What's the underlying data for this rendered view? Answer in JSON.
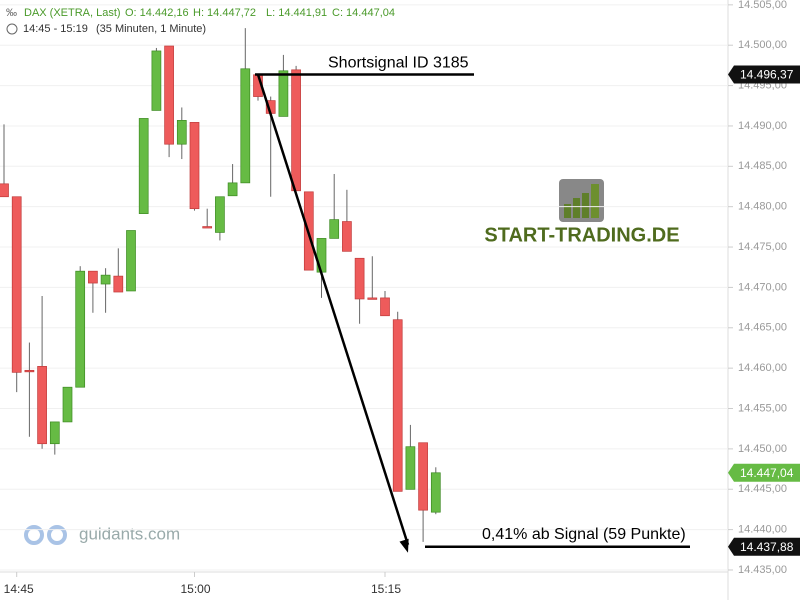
{
  "chart_data": {
    "type": "candlestick",
    "title": "DAX (XETRA, Last)",
    "stats": [
      "O: 14.442,16",
      "H: 14.447,72",
      "L: 14.441,91",
      "C: 14.447,04"
    ],
    "time_range": "14:45 - 15:19",
    "interval": "(35 Minuten, 1 Minute)",
    "categories": [
      null,
      "14:45",
      null,
      null,
      null,
      null,
      null,
      null,
      null,
      null,
      null,
      null,
      null,
      null,
      null,
      "15:00",
      null,
      null,
      null,
      null,
      null,
      null,
      null,
      null,
      null,
      null,
      null,
      null,
      null,
      null,
      "15:15",
      null,
      null,
      null,
      null
    ],
    "open": [
      14482.83,
      14481.23,
      14459.73,
      14460.22,
      14450.64,
      14453.34,
      14457.64,
      14472.01,
      14470.42,
      14471.4,
      14469.56,
      14479.14,
      14491.92,
      14499.9,
      14487.74,
      14490.44,
      14477.54,
      14476.81,
      14481.35,
      14482.95,
      14496.34,
      14493.14,
      14491.18,
      14496.95,
      14481.84,
      14471.89,
      14476.07,
      14478.16,
      14473.61,
      14468.7,
      14468.7,
      14466.0,
      14444.99,
      14450.76,
      14442.16
    ],
    "high": [
      14490.2,
      14481.23,
      14463.17,
      14468.94,
      14453.34,
      14457.64,
      14472.63,
      14472.01,
      14472.38,
      14474.84,
      14477.05,
      14490.93,
      14499.66,
      14499.9,
      14492.29,
      14490.44,
      14479.75,
      14481.23,
      14485.28,
      14502.11,
      14496.34,
      14493.64,
      14498.8,
      14497.44,
      14481.84,
      14476.07,
      14484.05,
      14482.09,
      14473.61,
      14473.86,
      14469.56,
      14466.98,
      14452.97,
      14450.76,
      14447.72
    ],
    "low": [
      14481.23,
      14457.03,
      14451.5,
      14450.02,
      14449.29,
      14453.34,
      14457.64,
      14466.86,
      14466.86,
      14469.43,
      14469.56,
      14479.14,
      14491.92,
      14486.14,
      14485.9,
      14479.51,
      14477.42,
      14475.82,
      14481.35,
      14482.95,
      14493.14,
      14481.23,
      14491.18,
      14481.97,
      14472.14,
      14468.7,
      14476.07,
      14474.47,
      14465.5,
      14468.57,
      14466.49,
      14444.74,
      14444.99,
      14438.48,
      14441.91
    ],
    "close": [
      14481.23,
      14459.48,
      14459.61,
      14450.64,
      14453.34,
      14457.64,
      14472.01,
      14470.54,
      14471.52,
      14469.43,
      14477.05,
      14490.93,
      14499.29,
      14487.74,
      14490.69,
      14479.75,
      14477.42,
      14481.23,
      14482.95,
      14497.08,
      14493.64,
      14491.55,
      14496.83,
      14481.97,
      14472.14,
      14476.07,
      14478.4,
      14474.47,
      14468.57,
      14468.57,
      14466.49,
      14444.74,
      14450.27,
      14442.41,
      14447.04
    ],
    "up_color": "#66bb44",
    "down_color": "#ee5b5b",
    "ylim": [
      14434.75,
      14505.6
    ],
    "yticks": [
      {
        "value": 14435,
        "label": "14.435,00"
      },
      {
        "value": 14440,
        "label": "14.440,00"
      },
      {
        "value": 14445,
        "label": "14.445,00"
      },
      {
        "value": 14450,
        "label": "14.450,00"
      },
      {
        "value": 14455,
        "label": "14.455,00"
      },
      {
        "value": 14460,
        "label": "14.460,00"
      },
      {
        "value": 14465,
        "label": "14.465,00"
      },
      {
        "value": 14470,
        "label": "14.470,00"
      },
      {
        "value": 14475,
        "label": "14.475,00"
      },
      {
        "value": 14480,
        "label": "14.480,00"
      },
      {
        "value": 14485,
        "label": "14.485,00"
      },
      {
        "value": 14490,
        "label": "14.490,00"
      },
      {
        "value": 14495,
        "label": "14.495,00"
      },
      {
        "value": 14500,
        "label": "14.500,00"
      },
      {
        "value": 14505,
        "label": "14.505,00"
      }
    ],
    "grid": true,
    "signal": {
      "text": "Shortsignal ID 3185",
      "value": 14496.37,
      "label": "14.496,37"
    },
    "target": {
      "text": "0,41% ab Signal (59 Punkte)",
      "value": 14437.88,
      "label": "14.437,88"
    },
    "last_price": {
      "value": 14447.04,
      "label": "14.447,04"
    },
    "watermark": "START-TRADING.DE",
    "brand": "guidants.com"
  }
}
